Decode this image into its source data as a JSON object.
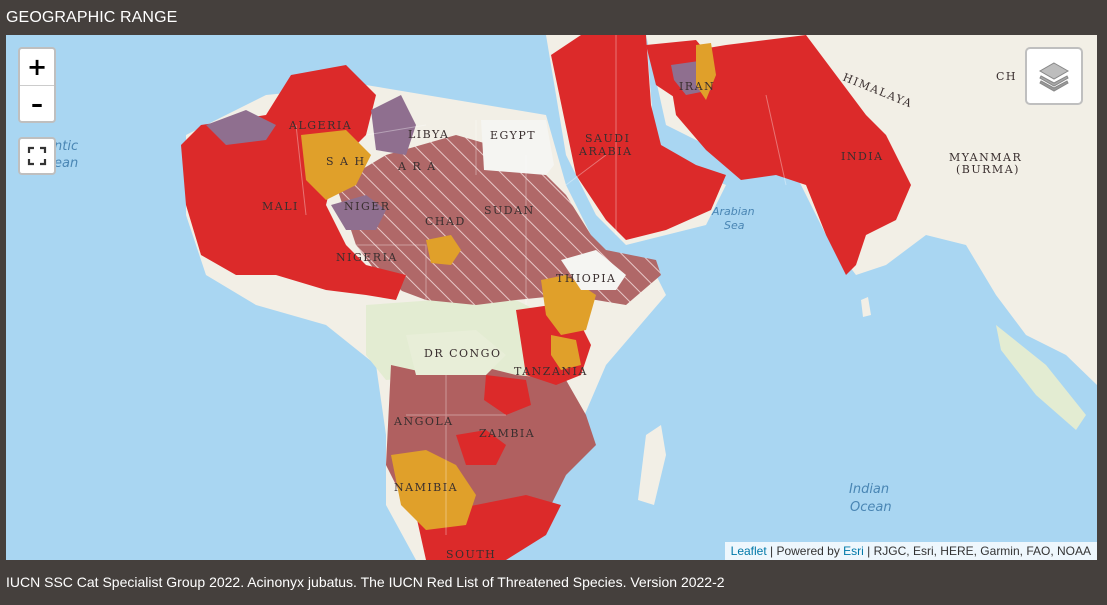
{
  "header": {
    "title": "GEOGRAPHIC RANGE"
  },
  "map": {
    "controls": {
      "zoom_in": "+",
      "zoom_out": "–",
      "fullscreen_icon": "fullscreen-icon",
      "layers_icon": "layers-icon"
    },
    "labels": {
      "algeria": "ALGERIA",
      "libya": "LIBYA",
      "egypt": "EGYPT",
      "saudi": "SAUDI",
      "arabia": "ARABIA",
      "iran": "IRAN",
      "india": "INDIA",
      "himalaya": "HIMALAYA",
      "china": "CH",
      "myanmar": "MYANMAR",
      "burma": "(BURMA)",
      "mali": "MALI",
      "niger": "NIGER",
      "chad": "CHAD",
      "sudan": "SUDAN",
      "nigeria": "NIGERIA",
      "ethiopia": "THIOPIA",
      "drcongo": "DR CONGO",
      "tanzania": "TANZANIA",
      "angola": "ANGOLA",
      "zambia": "ZAMBIA",
      "namibia": "NAMIBIA",
      "south": "SOUTH",
      "sahara_1": "S A H",
      "sahara_2": "A R A",
      "atlantic_1": "ntic",
      "atlantic_2": "ean",
      "arabian_sea_1": "Arabian",
      "arabian_sea_2": "Sea",
      "indian_ocean_1": "Indian",
      "indian_ocean_2": "Ocean"
    },
    "colors": {
      "water": "#a9d6f2",
      "land": "#f2efe6",
      "land_green": "#e3ecd2",
      "extant": "#dc2a2a",
      "possibly_extinct": "#b06060",
      "extinct_hatched": "#b06868",
      "presence_uncertain": "#8f6f8f",
      "reintroduced": "#e0a02a"
    },
    "attribution": {
      "leaflet": "Leaflet",
      "sep1": " | Powered by ",
      "esri": "Esri",
      "rest": " | RJGC, Esri, HERE, Garmin, FAO, NOAA"
    }
  },
  "footer": {
    "citation": "IUCN SSC Cat Specialist Group 2022. Acinonyx jubatus. The IUCN Red List of Threatened Species. Version 2022-2"
  }
}
